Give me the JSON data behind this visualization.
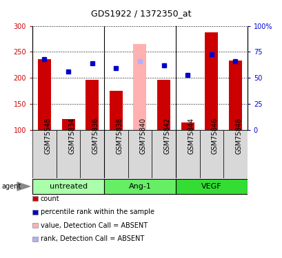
{
  "title": "GDS1922 / 1372350_at",
  "samples": [
    "GSM75548",
    "GSM75834",
    "GSM75836",
    "GSM75838",
    "GSM75840",
    "GSM75842",
    "GSM75844",
    "GSM75846",
    "GSM75848"
  ],
  "bar_values": [
    236,
    122,
    197,
    175,
    265,
    196,
    115,
    288,
    233
  ],
  "bar_absent": [
    false,
    false,
    false,
    false,
    true,
    false,
    false,
    false,
    false
  ],
  "dot_values": [
    236,
    213,
    228,
    219,
    232,
    224,
    206,
    245,
    232
  ],
  "dot_absent": [
    false,
    false,
    false,
    false,
    true,
    false,
    false,
    false,
    false
  ],
  "bar_color": "#cc0000",
  "bar_absent_color": "#ffb0b0",
  "dot_color": "#0000cc",
  "dot_absent_color": "#b0b0ff",
  "ylim_left": [
    100,
    300
  ],
  "ylim_right": [
    0,
    100
  ],
  "yticks_left": [
    100,
    150,
    200,
    250,
    300
  ],
  "yticks_right": [
    0,
    25,
    50,
    75,
    100
  ],
  "ytick_labels_right": [
    "0",
    "25",
    "50",
    "75",
    "100%"
  ],
  "groups": [
    {
      "label": "untreated",
      "indices": [
        0,
        1,
        2
      ],
      "color": "#aaffaa"
    },
    {
      "label": "Ang-1",
      "indices": [
        3,
        4,
        5
      ],
      "color": "#66ee66"
    },
    {
      "label": "VEGF",
      "indices": [
        6,
        7,
        8
      ],
      "color": "#33dd33"
    }
  ],
  "group_boundary_color": "#000000",
  "agent_label": "agent",
  "legend_items": [
    {
      "label": "count",
      "color": "#cc0000"
    },
    {
      "label": "percentile rank within the sample",
      "color": "#0000cc"
    },
    {
      "label": "value, Detection Call = ABSENT",
      "color": "#ffb0b0"
    },
    {
      "label": "rank, Detection Call = ABSENT",
      "color": "#b0b0ff"
    }
  ],
  "sample_box_color": "#d8d8d8",
  "plot_bg_color": "#ffffff",
  "fig_bg_color": "#ffffff",
  "grid_color": "#000000",
  "title_fontsize": 9,
  "tick_fontsize": 7,
  "label_fontsize": 7,
  "legend_fontsize": 7,
  "group_fontsize": 8
}
